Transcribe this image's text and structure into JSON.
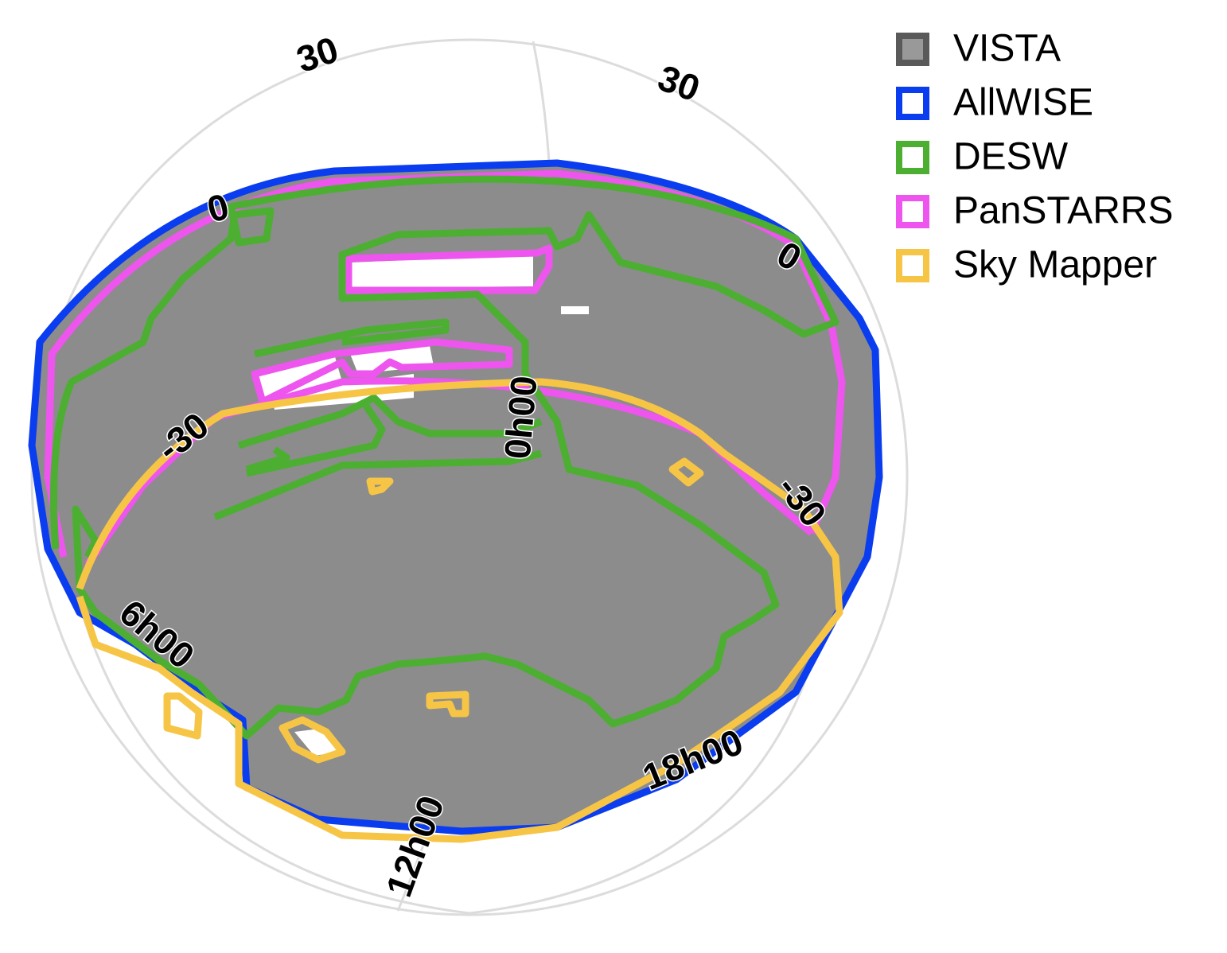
{
  "grid_labels": {
    "declination": [
      "30",
      "30",
      "0",
      "0",
      "-30",
      "-30"
    ],
    "right_ascension": [
      "0h00",
      "6h00",
      "12h00",
      "18h00"
    ]
  },
  "legend": [
    {
      "name": "VISTA",
      "color": "#5a5a5a"
    },
    {
      "name": "AllWISE",
      "color": "#0a3cf0"
    },
    {
      "name": "DESW",
      "color": "#4caf32"
    },
    {
      "name": "PanSTARRS",
      "color": "#ee55ee"
    },
    {
      "name": "Sky Mapper",
      "color": "#f7c546"
    }
  ]
}
